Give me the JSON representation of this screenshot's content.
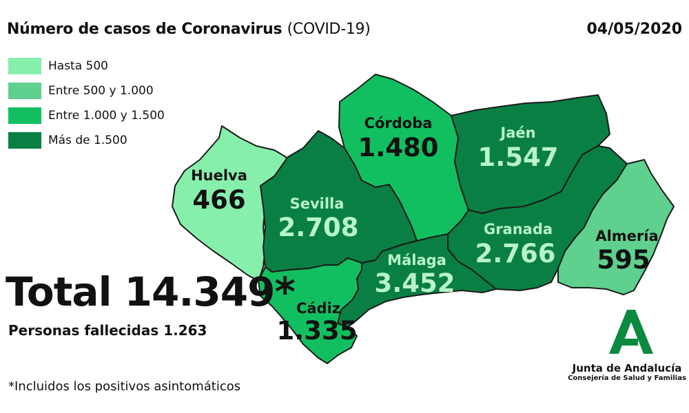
{
  "header": {
    "title": "Número de casos de Coronavirus",
    "title_suffix": "(COVID-19)",
    "date": "04/05/2020"
  },
  "legend": [
    {
      "label": "Hasta 500",
      "color": "#86efac"
    },
    {
      "label": "Entre 500 y 1.000",
      "color": "#5fd08e"
    },
    {
      "label": "Entre 1.000 y 1.500",
      "color": "#12bf60"
    },
    {
      "label": "Más de 1.500",
      "color": "#0a7f44"
    }
  ],
  "provinces": {
    "huelva": {
      "name": "Huelva",
      "value": "466",
      "color": "#86efac"
    },
    "sevilla": {
      "name": "Sevilla",
      "value": "2.708",
      "color": "#0a7f44"
    },
    "cordoba": {
      "name": "Córdoba",
      "value": "1.480",
      "color": "#12bf60"
    },
    "jaen": {
      "name": "Jaén",
      "value": "1.547",
      "color": "#0a7f44"
    },
    "granada": {
      "name": "Granada",
      "value": "2.766",
      "color": "#0a7f44"
    },
    "almeria": {
      "name": "Almería",
      "value": "595",
      "color": "#5fd08e"
    },
    "malaga": {
      "name": "Málaga",
      "value": "3.452",
      "color": "#0a7f44"
    },
    "cadiz": {
      "name": "Cádiz",
      "value": "1.335",
      "color": "#12bf60"
    }
  },
  "totals": {
    "total": "Total 14.349*",
    "deaths": "Personas fallecidas 1.263"
  },
  "footnote": "*Incluidos los positivos asintomáticos",
  "logo": {
    "line1": "Junta de Andalucía",
    "line2": "Consejería de Salud y Familias",
    "icon": "junta-andalucia-logo-icon",
    "color": "#0a8a3f"
  }
}
